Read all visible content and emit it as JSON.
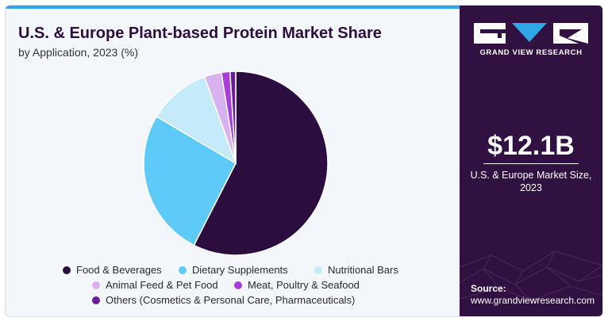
{
  "chart_data": {
    "type": "pie",
    "title": "U.S. & Europe Plant-based Protein Market Share",
    "subtitle": "by Application, 2023 (%)",
    "categories": [
      "Food & Beverages",
      "Dietary Supplements",
      "Nutritional Bars",
      "Animal Feed & Pet Food",
      "Meat, Poultry & Seafood",
      "Others (Cosmetics & Personal Care, Pharmaceuticals)"
    ],
    "values": [
      57.5,
      26.0,
      11.0,
      3.0,
      1.5,
      1.0
    ],
    "colors": [
      "#2c0d3f",
      "#5dcaf7",
      "#c5ebfb",
      "#d7b2ef",
      "#a63fd8",
      "#6a1d9a"
    ],
    "legend_position": "bottom"
  },
  "sidebar": {
    "brand": "GRAND VIEW RESEARCH",
    "market_value": "$12.1B",
    "market_caption_line1": "U.S. & Europe Market Size,",
    "market_caption_line2": "2023",
    "source_label": "Source:",
    "source_url": "www.grandviewresearch.com"
  }
}
